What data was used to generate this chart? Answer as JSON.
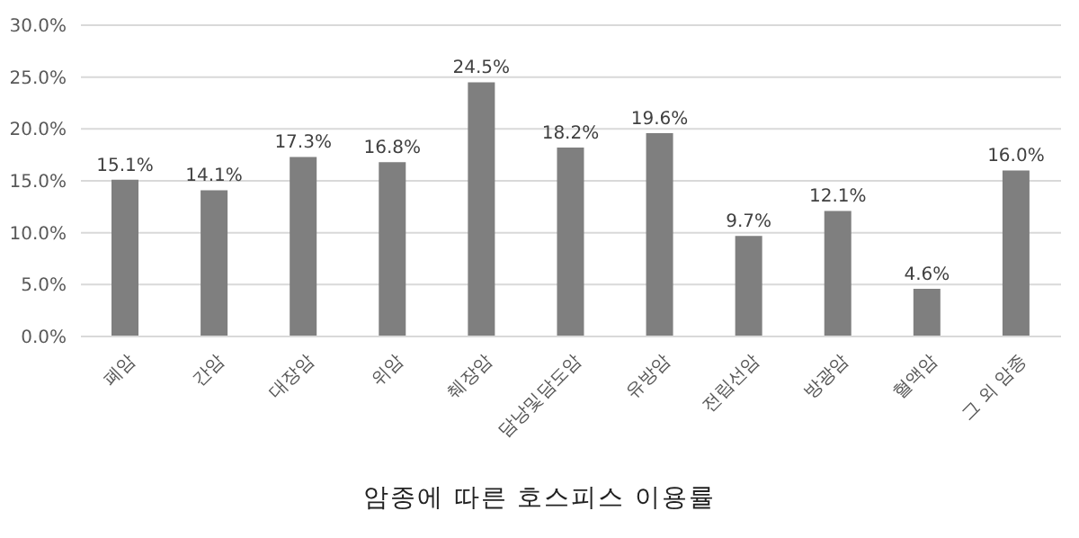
{
  "chart_data": {
    "type": "bar",
    "title": "암종에 따른 호스피스 이용률",
    "categories": [
      "폐암",
      "간암",
      "대장암",
      "위암",
      "췌장암",
      "담낭및담도암",
      "유방암",
      "전립선암",
      "방광암",
      "혈액암",
      "그 외 암종"
    ],
    "values": [
      15.1,
      14.1,
      17.3,
      16.8,
      24.5,
      18.2,
      19.6,
      9.7,
      12.1,
      4.6,
      16.0
    ],
    "value_labels": [
      "15.1%",
      "14.1%",
      "17.3%",
      "16.8%",
      "24.5%",
      "18.2%",
      "19.6%",
      "9.7%",
      "12.1%",
      "4.6%",
      "16.0%"
    ],
    "color": "#7f7f7f",
    "ylim": [
      0,
      30
    ],
    "yticks": [
      {
        "value": 0,
        "label": "0.0%"
      },
      {
        "value": 5,
        "label": "5.0%"
      },
      {
        "value": 10,
        "label": "10.0%"
      },
      {
        "value": 15,
        "label": "15.0%"
      },
      {
        "value": 20,
        "label": "20.0%"
      },
      {
        "value": 25,
        "label": "25.0%"
      },
      {
        "value": 30,
        "label": "30.0%"
      }
    ],
    "grid": "y"
  }
}
